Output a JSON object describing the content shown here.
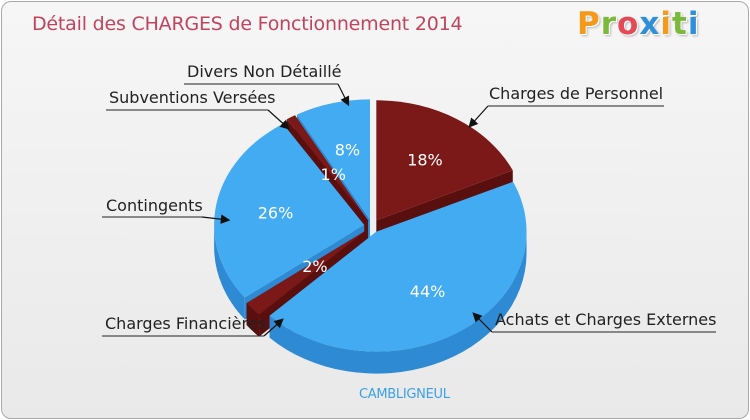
{
  "title": "Détail des CHARGES de Fonctionnement 2014",
  "logo": {
    "text": "Proxiti",
    "letter_colors": [
      "#f39a1a",
      "#7bb93a",
      "#e24a55",
      "#2f8fd8",
      "#f39a1a",
      "#7bb93a",
      "#2f8fd8"
    ]
  },
  "footer": "CAMBLIGNEUL",
  "colors": {
    "blue_top": "#42abf1",
    "blue_side": "#2e8ad2",
    "red_top": "#7b1818",
    "red_side": "#5a0f0f",
    "title": "#c0445e",
    "footer": "#3aa0e6"
  },
  "chart_data": {
    "type": "pie",
    "title": "Détail des CHARGES de Fonctionnement 2014",
    "slices": [
      {
        "label": "Charges de Personnel",
        "value": 18,
        "value_label": "18%",
        "color": "#7b1818",
        "side_color": "#5a0f0f"
      },
      {
        "label": "Achats et Charges Externes",
        "value": 44,
        "value_label": "44%",
        "color": "#42abf1",
        "side_color": "#2e8ad2"
      },
      {
        "label": "Charges Financières",
        "value": 2,
        "value_label": "2%",
        "color": "#7b1818",
        "side_color": "#5a0f0f"
      },
      {
        "label": "Contingents",
        "value": 26,
        "value_label": "26%",
        "color": "#42abf1",
        "side_color": "#2e8ad2"
      },
      {
        "label": "Subventions Versées",
        "value": 1,
        "value_label": "1%",
        "color": "#7b1818",
        "side_color": "#5a0f0f"
      },
      {
        "label": "Divers Non Détaillé",
        "value": 8,
        "value_label": "8%",
        "color": "#42abf1",
        "side_color": "#2e8ad2"
      }
    ],
    "style": "3d exploded pie"
  }
}
